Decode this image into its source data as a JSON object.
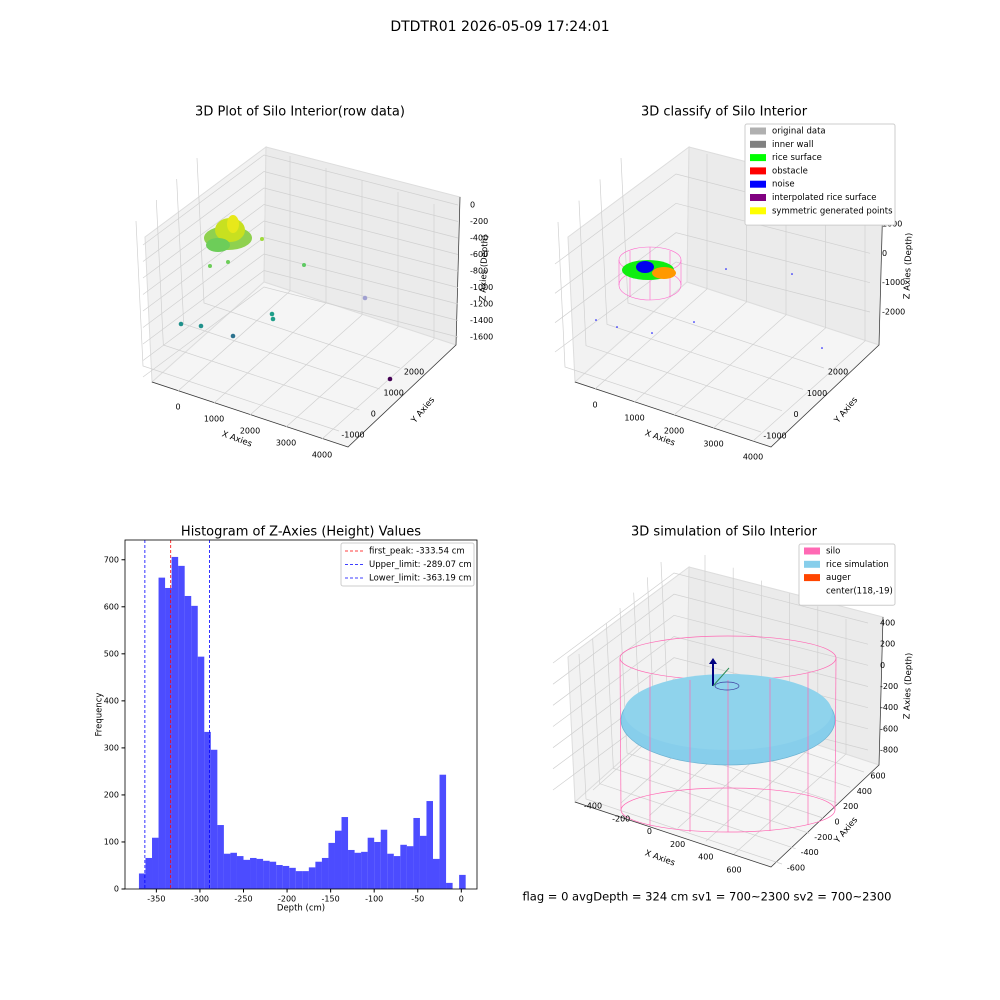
{
  "title": "DTDTR01 2026-05-09 17:24:01",
  "chart_data": [
    {
      "type": "scatter3d",
      "title": "3D Plot of Silo Interior(row data)",
      "xlabel": "X Axies",
      "ylabel": "Y Axies",
      "zlabel": "Z Axies (Depth)",
      "xticks": [
        0,
        1000,
        2000,
        3000,
        4000
      ],
      "yticks": [
        -1000,
        0,
        1000,
        2000
      ],
      "zticks": [
        0,
        -200,
        -400,
        -600,
        -800,
        -1000,
        -1200,
        -1400,
        -1600
      ]
    },
    {
      "type": "scatter3d",
      "title": "3D classify of Silo Interior",
      "xlabel": "X Axies",
      "ylabel": "Y Axies",
      "zlabel": "Z Axies (Depth)",
      "xticks": [
        0,
        1000,
        2000,
        3000,
        4000
      ],
      "yticks": [
        -1000,
        0,
        1000,
        2000
      ],
      "zticks": [
        1000,
        0,
        -1000,
        -2000
      ],
      "legend": [
        {
          "name": "original data",
          "color": "#b0b0b0"
        },
        {
          "name": "inner wall",
          "color": "#808080"
        },
        {
          "name": "rice surface",
          "color": "#00ff00"
        },
        {
          "name": "obstacle",
          "color": "#ff0000"
        },
        {
          "name": "noise",
          "color": "#0000ff"
        },
        {
          "name": "interpolated rice surface",
          "color": "#800080"
        },
        {
          "name": "symmetric generated points",
          "color": "#ffff00"
        }
      ]
    },
    {
      "type": "histogram",
      "title": "Histogram of Z-Axies (Height) Values",
      "xlabel": "Depth (cm)",
      "ylabel": "Frequency",
      "color": "#0000ff",
      "bins": [
        -370,
        -362.5,
        -355,
        -347.5,
        -340,
        -332.5,
        -325,
        -317.5,
        -310,
        -302.5,
        -295,
        -287.5,
        -280,
        -272.5,
        -265,
        -257.5,
        -250,
        -242.5,
        -235,
        -227.5,
        -220,
        -212.5,
        -205,
        -197.5,
        -190,
        -182.5,
        -175,
        -167.5,
        -160,
        -152.5,
        -145,
        -137.5,
        -130,
        -122.5,
        -115,
        -107.5,
        -100,
        -92.5,
        -85,
        -77.5,
        -70,
        -62.5,
        -55,
        -47.5,
        -40,
        -32.5,
        -25,
        -17.5,
        -10,
        -2.5,
        5
      ],
      "values": [
        33,
        66,
        109,
        662,
        640,
        706,
        687,
        623,
        602,
        494,
        334,
        296,
        136,
        75,
        77,
        70,
        62,
        66,
        64,
        60,
        58,
        51,
        49,
        45,
        38,
        38,
        46,
        58,
        66,
        98,
        124,
        153,
        83,
        77,
        79,
        109,
        100,
        126,
        75,
        70,
        94,
        91,
        151,
        113,
        187,
        64,
        243,
        13,
        0,
        30
      ],
      "xlim": [
        -386,
        18
      ],
      "ylim": [
        0,
        742
      ],
      "xticks": [
        -350,
        -300,
        -250,
        -200,
        -150,
        -100,
        -50,
        0
      ],
      "yticks": [
        0,
        100,
        200,
        300,
        400,
        500,
        600,
        700
      ],
      "lines": [
        {
          "name": "first_peak: -333.54 cm",
          "value": -333.54,
          "color": "#ff0000"
        },
        {
          "name": "Upper_limit: -289.07 cm",
          "value": -289.07,
          "color": "#0000ff"
        },
        {
          "name": "Lower_limit: -363.19 cm",
          "value": -363.19,
          "color": "#0000ff"
        }
      ]
    },
    {
      "type": "surface3d",
      "title": "3D simulation of Silo Interior",
      "xlabel": "X Axies",
      "ylabel": "Y Axies",
      "zlabel": "Z Axies (Depth)",
      "xticks": [
        -400,
        -200,
        0,
        200,
        400,
        600
      ],
      "yticks": [
        -600,
        -400,
        -200,
        0,
        200,
        400,
        600
      ],
      "zticks": [
        400,
        200,
        0,
        -200,
        -400,
        -600,
        -800
      ],
      "legend": [
        {
          "name": "silo",
          "color": "#ff69b4"
        },
        {
          "name": "rice simulation",
          "color": "#87ceeb"
        },
        {
          "name": "auger",
          "color": "#ff4500"
        },
        {
          "name": "center(118,-19)",
          "color": null
        }
      ],
      "footer": "flag = 0     avgDepth = 324 cm  sv1 = 700~2300  sv2 = 700~2300"
    }
  ]
}
